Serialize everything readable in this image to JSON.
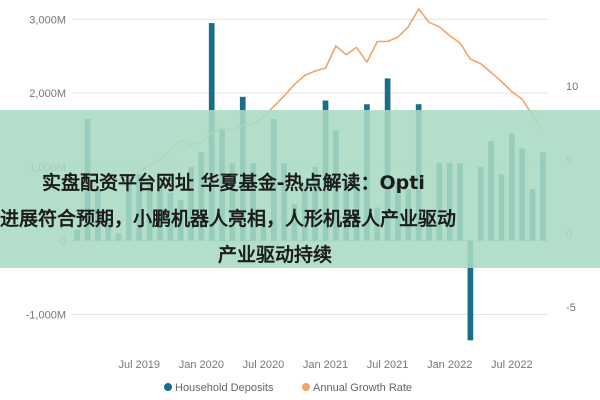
{
  "chart_data": {
    "type": "bar",
    "x": [
      "2019-01",
      "2019-02",
      "2019-03",
      "2019-04",
      "2019-05",
      "2019-06",
      "2019-07",
      "2019-08",
      "2019-09",
      "2019-10",
      "2019-11",
      "2019-12",
      "2020-01",
      "2020-02",
      "2020-03",
      "2020-04",
      "2020-05",
      "2020-06",
      "2020-07",
      "2020-08",
      "2020-09",
      "2020-10",
      "2020-11",
      "2020-12",
      "2021-01",
      "2021-02",
      "2021-03",
      "2021-04",
      "2021-05",
      "2021-06",
      "2021-07",
      "2021-08",
      "2021-09",
      "2021-10",
      "2021-11",
      "2021-12",
      "2022-01",
      "2022-02",
      "2022-03",
      "2022-04",
      "2022-05",
      "2022-06",
      "2022-07",
      "2022-08",
      "2022-09",
      "2022-10"
    ],
    "x_tick_labels": [
      "Jul 2019",
      "Jan 2020",
      "Jul 2020",
      "Jan 2021",
      "Jul 2021",
      "Jan 2022",
      "Jul 2022"
    ],
    "x_tick_values": [
      "2019-07",
      "2020-01",
      "2020-07",
      "2021-01",
      "2021-07",
      "2022-01",
      "2022-07"
    ],
    "series": [
      {
        "name": "Household Deposits",
        "type": "bar",
        "axis": "left",
        "color": "#1a6e8a",
        "values": [
          150,
          1650,
          700,
          250,
          100,
          850,
          900,
          800,
          800,
          650,
          550,
          1000,
          1200,
          2950,
          1500,
          1050,
          1950,
          1050,
          300,
          1650,
          1050,
          500,
          750,
          1000,
          1900,
          1500,
          800,
          800,
          1850,
          450,
          2200,
          800,
          700,
          1850,
          400,
          1050,
          1050,
          1050,
          -1350,
          1000,
          1350,
          900,
          1450,
          1250,
          700,
          1200
        ]
      },
      {
        "name": "Annual Growth Rate",
        "type": "line",
        "axis": "right",
        "color": "#f0a46a",
        "values": [
          3.3,
          3.3,
          3.4,
          3.7,
          3.6,
          3.9,
          4.2,
          4.6,
          5.0,
          5.6,
          6.3,
          6.0,
          6.2,
          6.8,
          7.1,
          7.0,
          7.3,
          7.4,
          7.9,
          8.6,
          9.3,
          10.1,
          10.7,
          11.0,
          11.2,
          12.7,
          12.1,
          12.6,
          11.6,
          13.0,
          13.0,
          13.3,
          14.0,
          15.2,
          14.3,
          14.0,
          13.4,
          12.9,
          11.8,
          11.5,
          10.9,
          10.3,
          9.6,
          9.1,
          8.0,
          7.0
        ]
      }
    ],
    "y_left": {
      "ticks": [
        -1000,
        0,
        1000,
        2000,
        3000
      ],
      "tick_labels": [
        "-1,000M",
        "0",
        "1,000M",
        "2,000M",
        "3,000M"
      ],
      "range": [
        -1400,
        3100
      ]
    },
    "y_right": {
      "ticks": [
        -5,
        0,
        5,
        10
      ],
      "tick_labels": [
        "-5",
        "0",
        "5",
        "10"
      ],
      "range": [
        -7.5,
        15
      ]
    },
    "legend": "bottom",
    "grid": true
  },
  "overlay": {
    "color": "#a8dbc3",
    "opacity": 0.88,
    "lines": [
      "实盘配资平台网址 华夏基金-热点解读：Opti",
      "进展符合预期，小鹏机器人亮相，人形机器人产业驱动",
      "产业驱动持续"
    ]
  }
}
